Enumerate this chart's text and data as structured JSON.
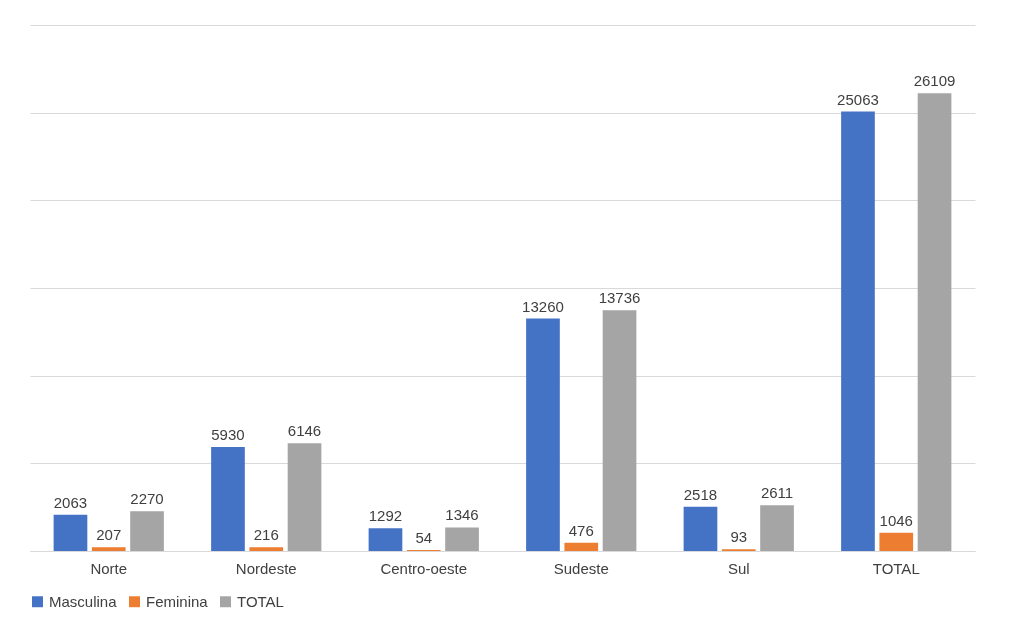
{
  "chart_data": {
    "type": "bar",
    "categories": [
      "Norte",
      "Nordeste",
      "Centro-oeste",
      "Sudeste",
      "Sul",
      "TOTAL"
    ],
    "series": [
      {
        "name": "Masculina",
        "color": "#4472c4",
        "values": [
          2063,
          5930,
          1292,
          13260,
          2518,
          25063
        ]
      },
      {
        "name": "Feminina",
        "color": "#ed7d31",
        "values": [
          207,
          216,
          54,
          476,
          93,
          1046
        ]
      },
      {
        "name": "TOTAL",
        "color": "#a5a5a5",
        "values": [
          2270,
          6146,
          1346,
          13736,
          2611,
          26109
        ]
      }
    ],
    "ylim": [
      0,
      30000
    ],
    "yticks": [
      {
        "value": 0,
        "label": null
      },
      {
        "value": 5000,
        "label": null
      },
      {
        "value": 10000,
        "label": null
      },
      {
        "value": 15000,
        "label": null
      },
      {
        "value": 20000,
        "label": null
      },
      {
        "value": 25000,
        "label": null
      },
      {
        "value": 30000,
        "label": null
      }
    ],
    "tick_labels": "x",
    "grid": "y",
    "data_labels": true,
    "legend": "bottom"
  }
}
